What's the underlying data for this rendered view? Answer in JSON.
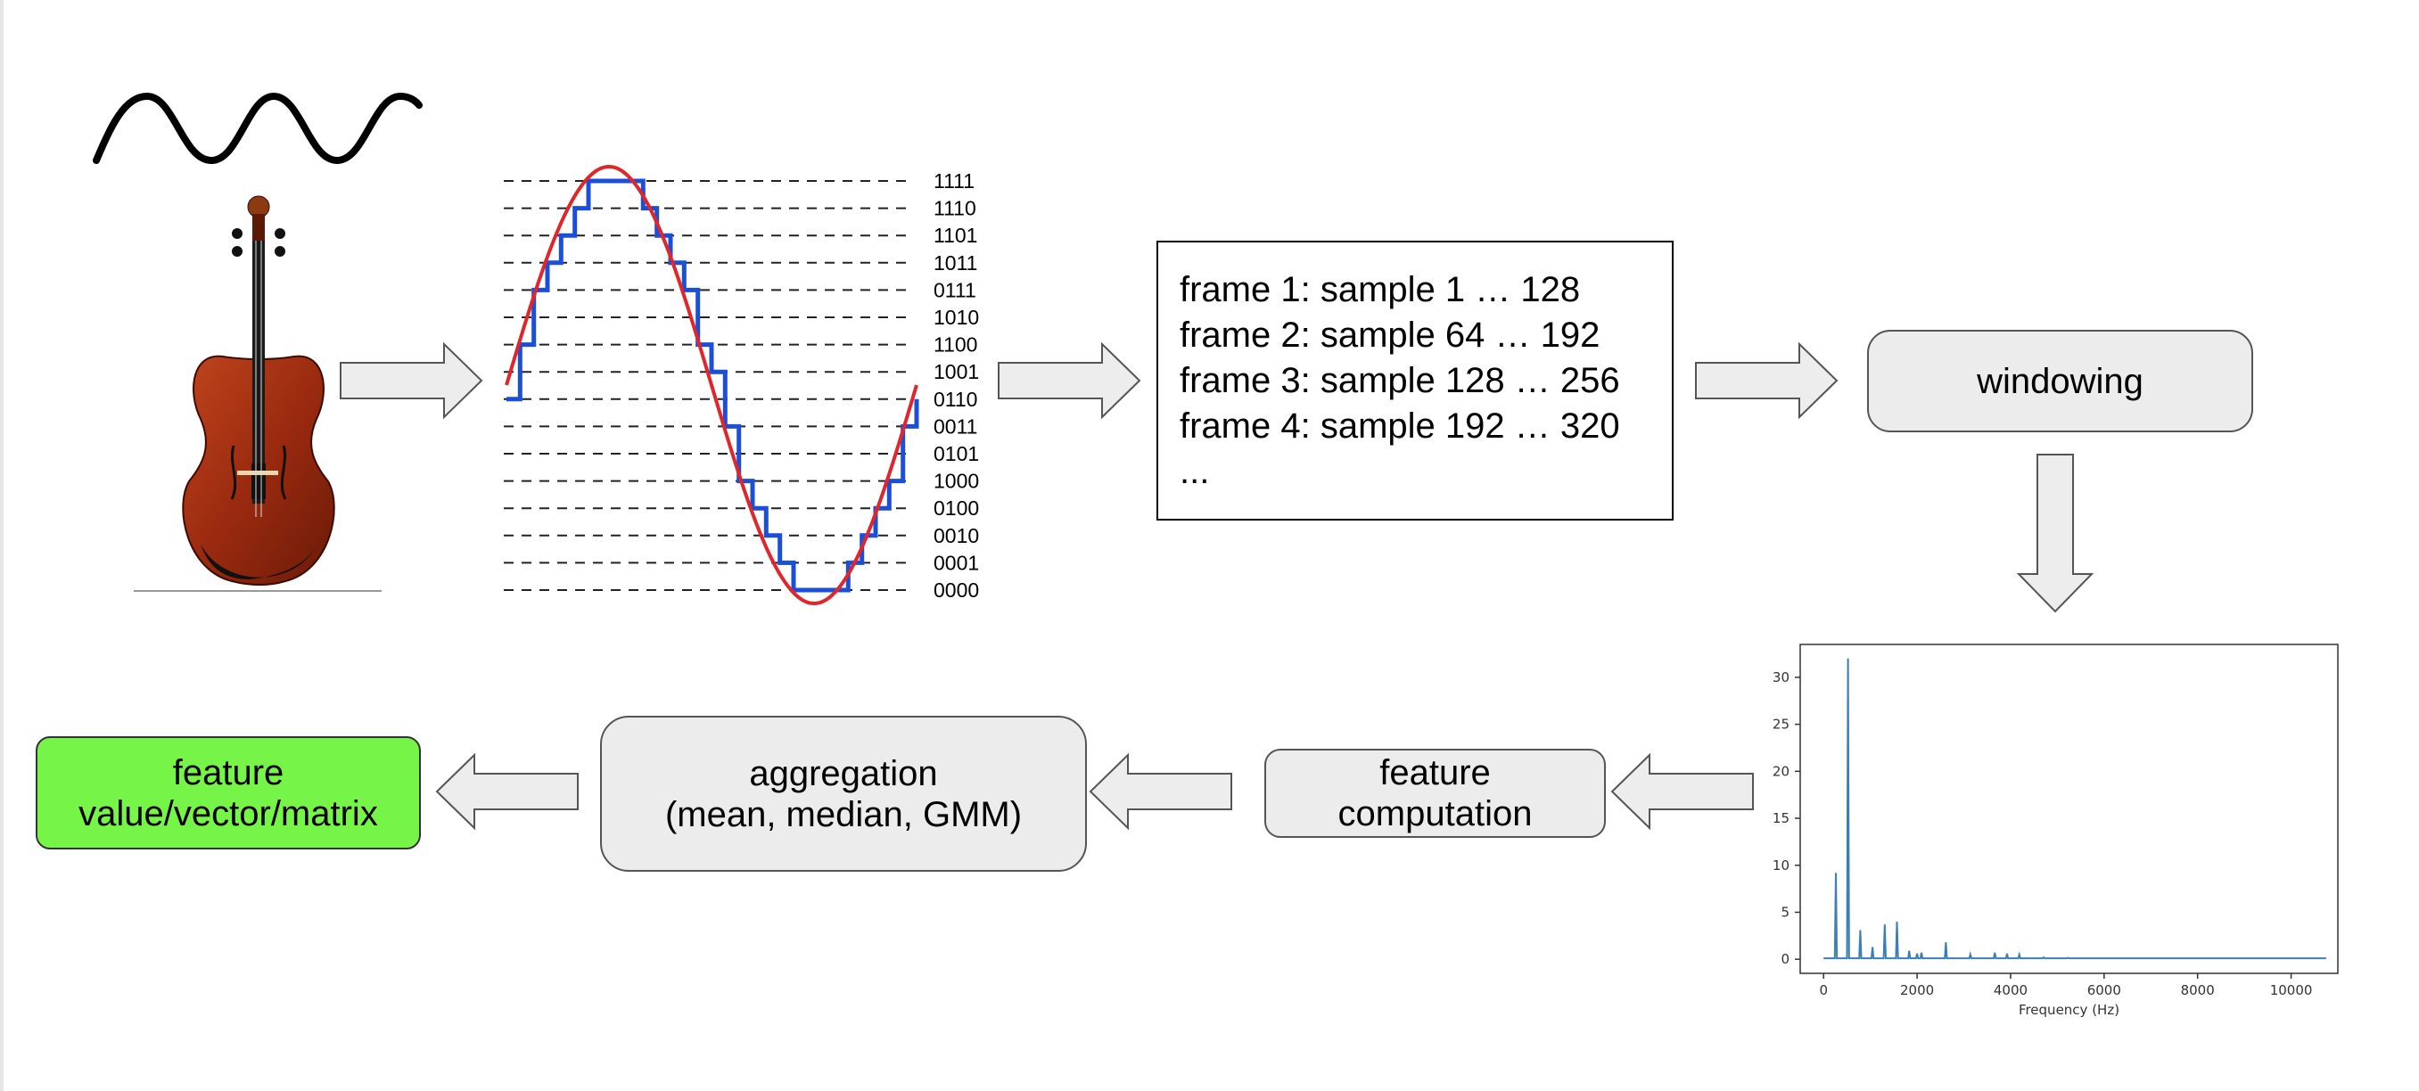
{
  "quantization_codes": [
    "1111",
    "1110",
    "1101",
    "1011",
    "0111",
    "1010",
    "1100",
    "1001",
    "0110",
    "0011",
    "0101",
    "1000",
    "0100",
    "0010",
    "0001",
    "0000"
  ],
  "frames": [
    "frame 1: sample 1 … 128",
    "frame 2: sample 64 … 192",
    "frame 3: sample 128 … 256",
    "frame 4: sample 192 … 320",
    "..."
  ],
  "windowing_label": "windowing",
  "feature_computation_label": [
    "feature",
    "computation"
  ],
  "aggregation_label": [
    "aggregation",
    "(mean, median, GMM)"
  ],
  "output_label": [
    "feature",
    "value/vector/matrix"
  ],
  "colors": {
    "output_fill": "#76f447",
    "box_fill": "#ececec",
    "sine_red": "#e0262a",
    "staircase_blue": "#1c4fd8",
    "spectrum_line": "#3b7fb5"
  },
  "chart_data": {
    "type": "line",
    "title": "",
    "xlabel": "Frequency (Hz)",
    "ylabel": "",
    "xlim": [
      -500,
      11000
    ],
    "ylim": [
      -1.5,
      33.5
    ],
    "xticks": [
      0,
      2000,
      4000,
      6000,
      8000,
      10000
    ],
    "yticks": [
      0,
      5,
      10,
      15,
      20,
      25,
      30
    ],
    "peaks": [
      {
        "x": 262,
        "y": 9.2
      },
      {
        "x": 523,
        "y": 32.0
      },
      {
        "x": 785,
        "y": 3.1
      },
      {
        "x": 1046,
        "y": 1.3
      },
      {
        "x": 1308,
        "y": 3.7
      },
      {
        "x": 1570,
        "y": 4.0
      },
      {
        "x": 1831,
        "y": 0.9
      },
      {
        "x": 2000,
        "y": 0.6
      },
      {
        "x": 2093,
        "y": 0.7
      },
      {
        "x": 2616,
        "y": 1.8
      },
      {
        "x": 3139,
        "y": 0.5
      },
      {
        "x": 3662,
        "y": 0.7
      },
      {
        "x": 3924,
        "y": 0.6
      },
      {
        "x": 4186,
        "y": 0.5
      },
      {
        "x": 4709,
        "y": 0.2
      },
      {
        "x": 5231,
        "y": 0.15
      }
    ],
    "x_end": 10750,
    "grid": false
  }
}
